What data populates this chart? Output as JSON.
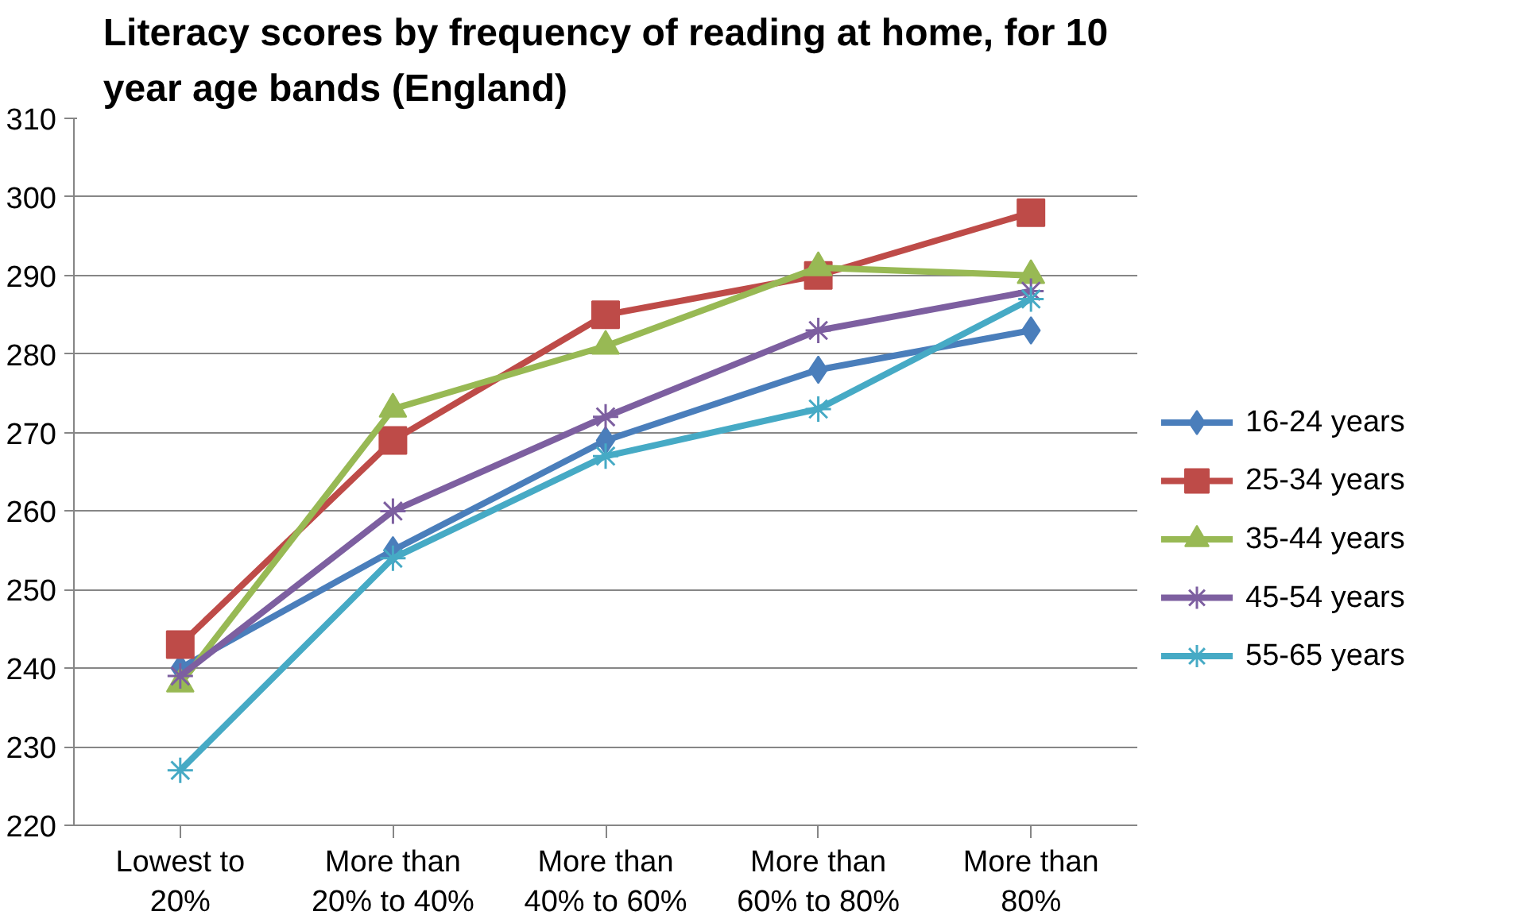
{
  "chart_data": {
    "type": "line",
    "title": "Literacy scores by frequency of reading at home, for 10 year age bands (England)",
    "categories": [
      "Lowest to 20%",
      "More than 20% to 40%",
      "More than 40% to 60%",
      "More than 60% to 80%",
      "More than 80%"
    ],
    "series": [
      {
        "name": "16-24 years",
        "color": "#4a7ebb",
        "marker": "diamond",
        "values": [
          240,
          255,
          269,
          278,
          283
        ]
      },
      {
        "name": "25-34 years",
        "color": "#be4b48",
        "marker": "square",
        "values": [
          243,
          269,
          285,
          290,
          298
        ]
      },
      {
        "name": "35-44 years",
        "color": "#98b954",
        "marker": "triangle",
        "values": [
          238,
          273,
          281,
          291,
          290
        ]
      },
      {
        "name": "45-54 years",
        "color": "#7d5fa0",
        "marker": "cross",
        "values": [
          239,
          260,
          272,
          283,
          288
        ]
      },
      {
        "name": "55-65 years",
        "color": "#46aac5",
        "marker": "cross",
        "values": [
          227,
          254,
          267,
          273,
          287
        ]
      }
    ],
    "ylim": [
      220,
      310
    ],
    "yticks": [
      220,
      230,
      240,
      250,
      260,
      270,
      280,
      290,
      300,
      310
    ],
    "grid": "y",
    "legend": "right"
  }
}
